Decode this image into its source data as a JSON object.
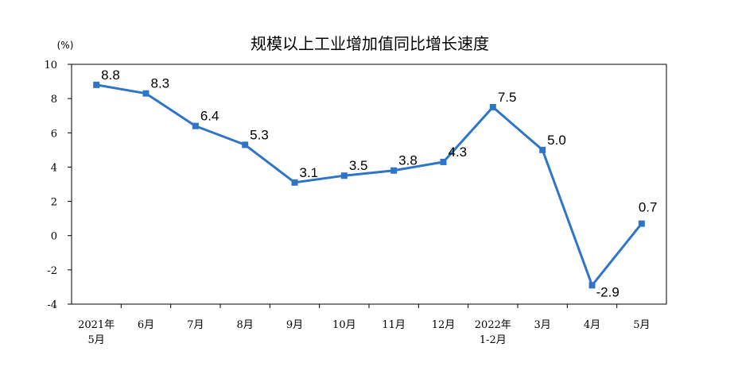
{
  "chart_data": {
    "type": "line",
    "title": "规模以上工业增加值同比增长速度",
    "unit": "(%)",
    "ylim": [
      -4,
      10
    ],
    "yticks": [
      "10",
      "8",
      "6",
      "4",
      "2",
      "0",
      "-2",
      "-4"
    ],
    "categories": [
      [
        "2021年",
        "5月"
      ],
      [
        "6月"
      ],
      [
        "7月"
      ],
      [
        "8月"
      ],
      [
        "9月"
      ],
      [
        "10月"
      ],
      [
        "11月"
      ],
      [
        "12月"
      ],
      [
        "2022年",
        "1-2月"
      ],
      [
        "3月"
      ],
      [
        "4月"
      ],
      [
        "5月"
      ]
    ],
    "values": [
      8.8,
      8.3,
      6.4,
      5.3,
      3.1,
      3.5,
      3.8,
      4.3,
      7.5,
      5.0,
      -2.9,
      0.7
    ],
    "data_labels": [
      "8.8",
      "8.3",
      "6.4",
      "5.3",
      "3.1",
      "3.5",
      "3.8",
      "4.3",
      "7.5",
      "5.0",
      "-2.9",
      "0.7"
    ],
    "line_color": "#2E75C8",
    "grid": false,
    "legend": "none"
  }
}
